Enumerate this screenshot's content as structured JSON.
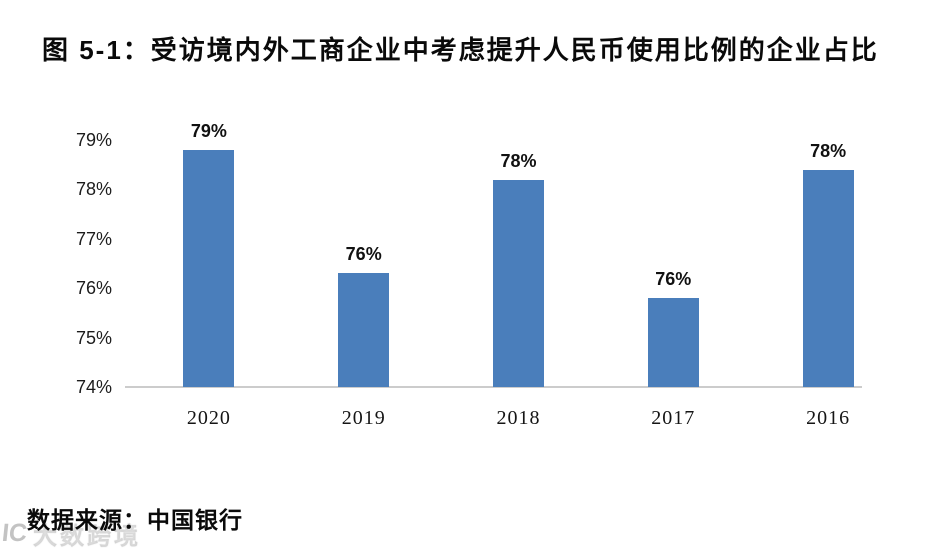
{
  "title": "图 5-1：受访境内外工商企业中考虑提升人民币使用比例的企业占比",
  "source": "数据来源：中国银行",
  "watermark": {
    "logo": "IC",
    "text": "大数跨境"
  },
  "colors": {
    "bar": "#4A7EBB",
    "axis_line": "#CCCCCC",
    "text": "#0A0A0A",
    "watermark": "#C3C3C3"
  },
  "chart_data": {
    "type": "bar",
    "title": "图 5-1：受访境内外工商企业中考虑提升人民币使用比例的企业占比",
    "categories": [
      "2020",
      "2019",
      "2018",
      "2017",
      "2016"
    ],
    "values": [
      78.8,
      76.3,
      78.2,
      75.8,
      78.4
    ],
    "bar_labels": [
      "79%",
      "76%",
      "78%",
      "76%",
      "78%"
    ],
    "yticks": [
      "79%",
      "78%",
      "77%",
      "76%",
      "75%",
      "74%"
    ],
    "ylim": [
      74,
      79
    ],
    "xlabel": "",
    "ylabel": "",
    "grid": false,
    "legend": null
  }
}
